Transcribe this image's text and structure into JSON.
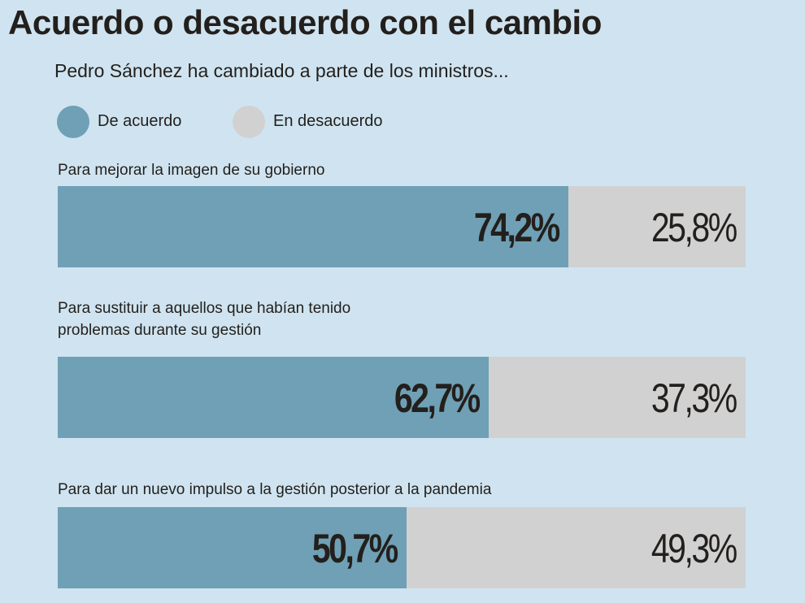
{
  "title": "Acuerdo o desacuerdo con el cambio",
  "subtitle": "Pedro Sánchez ha cambiado a parte de los ministros...",
  "colors": {
    "background": "#cfe4f0",
    "agree": "#6fa0b5",
    "disagree": "#d1d1d1"
  },
  "legend": [
    {
      "label": "De acuerdo",
      "color": "#6fa0b5"
    },
    {
      "label": "En desacuerdo",
      "color": "#d1d1d1"
    }
  ],
  "chart_data": {
    "type": "bar",
    "stacked": true,
    "orientation": "horizontal",
    "categories": [
      "Para mejorar la imagen de su gobierno",
      "Para sustituir a aquellos que habían tenido\nproblemas durante su gestión",
      "Para dar un nuevo impulso a la gestión posterior a la pandemia"
    ],
    "series": [
      {
        "name": "De acuerdo",
        "values": [
          74.2,
          62.7,
          50.7
        ]
      },
      {
        "name": "En desacuerdo",
        "values": [
          25.8,
          37.3,
          49.3
        ]
      }
    ],
    "labels": [
      {
        "agree": "74,2%",
        "disagree": "25,8%"
      },
      {
        "agree": "62,7%",
        "disagree": "37,3%"
      },
      {
        "agree": "50,7%",
        "disagree": "49,3%"
      }
    ],
    "xlim": [
      0,
      100
    ]
  }
}
